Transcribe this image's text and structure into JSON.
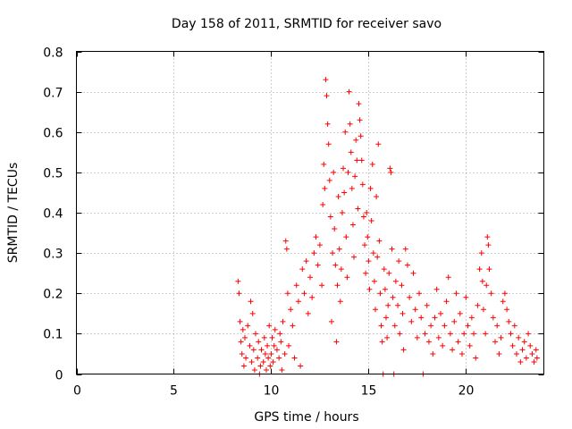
{
  "chart_data": {
    "type": "scatter",
    "title": "Day 158 of 2011, SRMTID for receiver savo",
    "xlabel": "GPS time / hours",
    "ylabel": "SRMTID / TECUs",
    "xlim": [
      0,
      24
    ],
    "ylim": [
      0,
      0.8
    ],
    "x_ticks": [
      0,
      5,
      10,
      15,
      20
    ],
    "x_tick_labels": [
      "0",
      "5",
      "10",
      "15",
      "20"
    ],
    "y_ticks": [
      0,
      0.1,
      0.2,
      0.3,
      0.4,
      0.5,
      0.6,
      0.7,
      0.8
    ],
    "y_tick_labels": [
      "0",
      "0.1",
      "0.2",
      "0.3",
      "0.4",
      "0.5",
      "0.6",
      "0.7",
      "0.8"
    ],
    "grid": true,
    "marker": "+",
    "color": "#ff0000",
    "series": [
      {
        "name": "SRMTID",
        "points": [
          [
            8.3,
            0.23
          ],
          [
            8.35,
            0.2
          ],
          [
            8.4,
            0.13
          ],
          [
            8.45,
            0.08
          ],
          [
            8.5,
            0.05
          ],
          [
            8.55,
            0.11
          ],
          [
            8.6,
            0.02
          ],
          [
            8.65,
            0.09
          ],
          [
            8.7,
            0.04
          ],
          [
            8.8,
            0.12
          ],
          [
            8.9,
            0.07
          ],
          [
            8.95,
            0.18
          ],
          [
            9.0,
            0.03
          ],
          [
            9.05,
            0.15
          ],
          [
            9.1,
            0.06
          ],
          [
            9.15,
            0.01
          ],
          [
            9.2,
            0.1
          ],
          [
            9.3,
            0.04
          ],
          [
            9.35,
            0.08
          ],
          [
            9.4,
            0.0
          ],
          [
            9.45,
            0.02
          ],
          [
            9.5,
            0.06
          ],
          [
            9.6,
            0.03
          ],
          [
            9.65,
            0.09
          ],
          [
            9.7,
            0.05
          ],
          [
            9.75,
            0.01
          ],
          [
            9.8,
            0.07
          ],
          [
            9.85,
            0.04
          ],
          [
            9.9,
            0.12
          ],
          [
            9.95,
            0.02
          ],
          [
            10.0,
            0.05
          ],
          [
            10.05,
            0.09
          ],
          [
            10.1,
            0.03
          ],
          [
            10.15,
            0.07
          ],
          [
            10.2,
            0.11
          ],
          [
            10.3,
            0.06
          ],
          [
            10.4,
            0.04
          ],
          [
            10.45,
            0.1
          ],
          [
            10.5,
            0.08
          ],
          [
            10.55,
            0.01
          ],
          [
            10.6,
            0.13
          ],
          [
            10.7,
            0.05
          ],
          [
            10.75,
            0.33
          ],
          [
            10.8,
            0.31
          ],
          [
            10.85,
            0.2
          ],
          [
            10.9,
            0.07
          ],
          [
            11.0,
            0.16
          ],
          [
            11.1,
            0.12
          ],
          [
            11.2,
            0.04
          ],
          [
            11.3,
            0.22
          ],
          [
            11.4,
            0.18
          ],
          [
            11.5,
            0.02
          ],
          [
            11.6,
            0.26
          ],
          [
            11.7,
            0.2
          ],
          [
            11.8,
            0.28
          ],
          [
            11.9,
            0.15
          ],
          [
            12.0,
            0.24
          ],
          [
            12.1,
            0.19
          ],
          [
            12.2,
            0.3
          ],
          [
            12.3,
            0.34
          ],
          [
            12.4,
            0.27
          ],
          [
            12.5,
            0.32
          ],
          [
            12.6,
            0.22
          ],
          [
            12.65,
            0.42
          ],
          [
            12.7,
            0.52
          ],
          [
            12.75,
            0.46
          ],
          [
            12.8,
            0.73
          ],
          [
            12.85,
            0.69
          ],
          [
            12.9,
            0.62
          ],
          [
            12.95,
            0.57
          ],
          [
            13.0,
            0.48
          ],
          [
            13.05,
            0.39
          ],
          [
            13.1,
            0.13
          ],
          [
            13.15,
            0.3
          ],
          [
            13.2,
            0.5
          ],
          [
            13.25,
            0.36
          ],
          [
            13.3,
            0.27
          ],
          [
            13.35,
            0.08
          ],
          [
            13.4,
            0.22
          ],
          [
            13.45,
            0.44
          ],
          [
            13.5,
            0.31
          ],
          [
            13.55,
            0.18
          ],
          [
            13.6,
            0.26
          ],
          [
            13.65,
            0.4
          ],
          [
            13.7,
            0.51
          ],
          [
            13.75,
            0.45
          ],
          [
            13.8,
            0.6
          ],
          [
            13.85,
            0.34
          ],
          [
            13.9,
            0.24
          ],
          [
            13.95,
            0.5
          ],
          [
            14.0,
            0.7
          ],
          [
            14.05,
            0.62
          ],
          [
            14.1,
            0.55
          ],
          [
            14.15,
            0.46
          ],
          [
            14.2,
            0.37
          ],
          [
            14.25,
            0.29
          ],
          [
            14.3,
            0.49
          ],
          [
            14.35,
            0.58
          ],
          [
            14.4,
            0.53
          ],
          [
            14.45,
            0.41
          ],
          [
            14.5,
            0.67
          ],
          [
            14.55,
            0.63
          ],
          [
            14.6,
            0.59
          ],
          [
            14.65,
            0.53
          ],
          [
            14.7,
            0.47
          ],
          [
            14.75,
            0.39
          ],
          [
            14.8,
            0.32
          ],
          [
            14.85,
            0.25
          ],
          [
            14.9,
            0.4
          ],
          [
            14.95,
            0.34
          ],
          [
            15.0,
            0.28
          ],
          [
            15.05,
            0.21
          ],
          [
            15.1,
            0.46
          ],
          [
            15.15,
            0.38
          ],
          [
            15.2,
            0.52
          ],
          [
            15.25,
            0.3
          ],
          [
            15.3,
            0.23
          ],
          [
            15.35,
            0.16
          ],
          [
            15.4,
            0.44
          ],
          [
            15.45,
            0.29
          ],
          [
            15.5,
            0.57
          ],
          [
            15.55,
            0.33
          ],
          [
            15.6,
            0.2
          ],
          [
            15.65,
            0.12
          ],
          [
            15.7,
            0.08
          ],
          [
            15.75,
            0.0
          ],
          [
            15.8,
            0.26
          ],
          [
            15.85,
            0.21
          ],
          [
            15.9,
            0.14
          ],
          [
            15.95,
            0.09
          ],
          [
            16.0,
            0.17
          ],
          [
            16.05,
            0.25
          ],
          [
            16.1,
            0.51
          ],
          [
            16.15,
            0.5
          ],
          [
            16.2,
            0.31
          ],
          [
            16.25,
            0.19
          ],
          [
            16.3,
            0.0
          ],
          [
            16.35,
            0.12
          ],
          [
            16.4,
            0.23
          ],
          [
            16.5,
            0.17
          ],
          [
            16.55,
            0.28
          ],
          [
            16.6,
            0.1
          ],
          [
            16.7,
            0.22
          ],
          [
            16.75,
            0.15
          ],
          [
            16.8,
            0.06
          ],
          [
            16.9,
            0.31
          ],
          [
            17.0,
            0.27
          ],
          [
            17.1,
            0.19
          ],
          [
            17.2,
            0.13
          ],
          [
            17.3,
            0.25
          ],
          [
            17.4,
            0.16
          ],
          [
            17.5,
            0.09
          ],
          [
            17.6,
            0.2
          ],
          [
            17.7,
            0.14
          ],
          [
            17.8,
            0.0
          ],
          [
            17.9,
            0.1
          ],
          [
            18.0,
            0.17
          ],
          [
            18.1,
            0.08
          ],
          [
            18.2,
            0.12
          ],
          [
            18.3,
            0.05
          ],
          [
            18.4,
            0.14
          ],
          [
            18.5,
            0.21
          ],
          [
            18.6,
            0.09
          ],
          [
            18.7,
            0.15
          ],
          [
            18.8,
            0.07
          ],
          [
            18.9,
            0.12
          ],
          [
            19.0,
            0.18
          ],
          [
            19.1,
            0.24
          ],
          [
            19.2,
            0.1
          ],
          [
            19.3,
            0.06
          ],
          [
            19.4,
            0.13
          ],
          [
            19.5,
            0.2
          ],
          [
            19.6,
            0.08
          ],
          [
            19.7,
            0.15
          ],
          [
            19.8,
            0.05
          ],
          [
            19.9,
            0.1
          ],
          [
            20.0,
            0.19
          ],
          [
            20.1,
            0.12
          ],
          [
            20.2,
            0.07
          ],
          [
            20.3,
            0.14
          ],
          [
            20.4,
            0.1
          ],
          [
            20.5,
            0.04
          ],
          [
            20.6,
            0.17
          ],
          [
            20.7,
            0.26
          ],
          [
            20.8,
            0.3
          ],
          [
            20.85,
            0.23
          ],
          [
            20.9,
            0.16
          ],
          [
            21.0,
            0.1
          ],
          [
            21.05,
            0.22
          ],
          [
            21.1,
            0.34
          ],
          [
            21.15,
            0.32
          ],
          [
            21.2,
            0.26
          ],
          [
            21.3,
            0.2
          ],
          [
            21.4,
            0.14
          ],
          [
            21.5,
            0.08
          ],
          [
            21.6,
            0.12
          ],
          [
            21.7,
            0.05
          ],
          [
            21.8,
            0.09
          ],
          [
            21.9,
            0.18
          ],
          [
            22.0,
            0.2
          ],
          [
            22.1,
            0.16
          ],
          [
            22.2,
            0.13
          ],
          [
            22.3,
            0.1
          ],
          [
            22.4,
            0.07
          ],
          [
            22.5,
            0.12
          ],
          [
            22.6,
            0.05
          ],
          [
            22.7,
            0.09
          ],
          [
            22.8,
            0.03
          ],
          [
            22.9,
            0.06
          ],
          [
            23.0,
            0.08
          ],
          [
            23.1,
            0.04
          ],
          [
            23.2,
            0.1
          ],
          [
            23.3,
            0.07
          ],
          [
            23.4,
            0.05
          ],
          [
            23.5,
            0.03
          ],
          [
            23.6,
            0.06
          ],
          [
            23.65,
            0.04
          ]
        ]
      }
    ]
  }
}
